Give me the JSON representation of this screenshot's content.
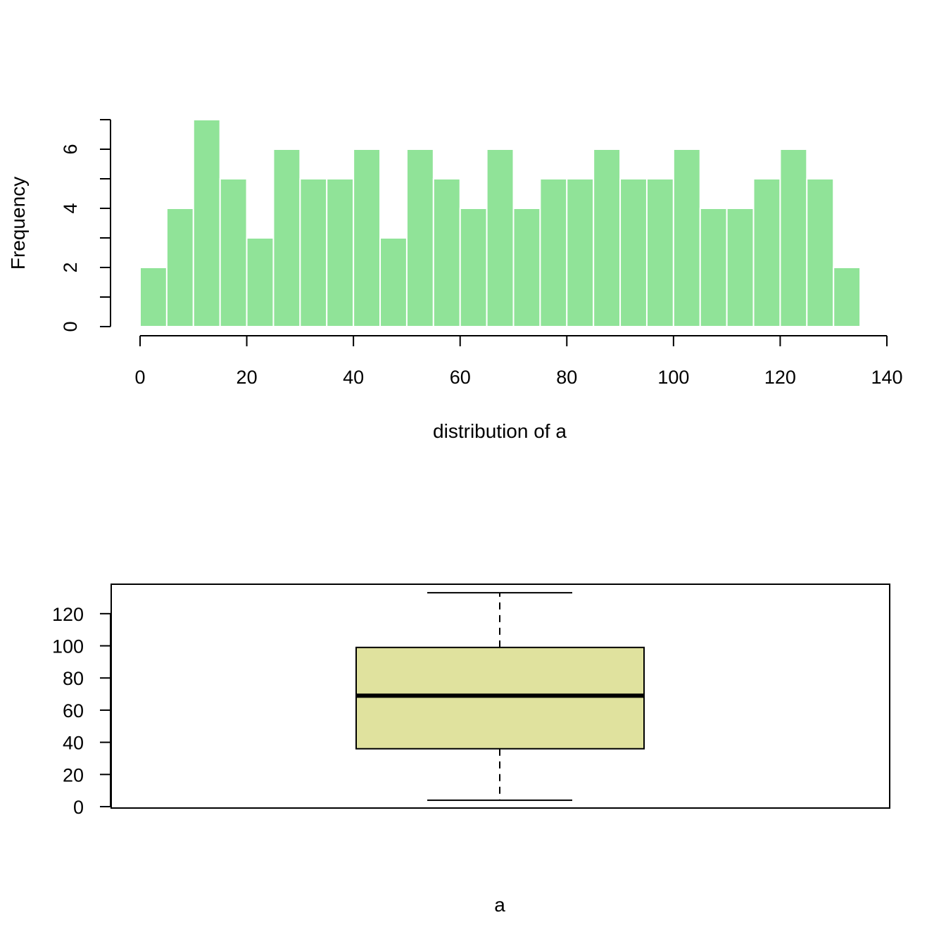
{
  "chart_data": [
    {
      "type": "bar",
      "subtype": "histogram",
      "title": "",
      "xlabel": "distribution of a",
      "ylabel": "Frequency",
      "bin_width": 5,
      "bins": [
        [
          0,
          5
        ],
        [
          5,
          10
        ],
        [
          10,
          15
        ],
        [
          15,
          20
        ],
        [
          20,
          25
        ],
        [
          25,
          30
        ],
        [
          30,
          35
        ],
        [
          35,
          40
        ],
        [
          40,
          45
        ],
        [
          45,
          50
        ],
        [
          50,
          55
        ],
        [
          55,
          60
        ],
        [
          60,
          65
        ],
        [
          65,
          70
        ],
        [
          70,
          75
        ],
        [
          75,
          80
        ],
        [
          80,
          85
        ],
        [
          85,
          90
        ],
        [
          90,
          95
        ],
        [
          95,
          100
        ],
        [
          100,
          105
        ],
        [
          105,
          110
        ],
        [
          110,
          115
        ],
        [
          115,
          120
        ],
        [
          120,
          125
        ],
        [
          125,
          130
        ],
        [
          130,
          135
        ]
      ],
      "values": [
        2,
        4,
        7,
        5,
        3,
        6,
        5,
        5,
        6,
        3,
        6,
        5,
        4,
        6,
        4,
        5,
        5,
        6,
        5,
        5,
        6,
        4,
        4,
        5,
        6,
        5,
        2
      ],
      "xlim": [
        0,
        140
      ],
      "ylim": [
        0,
        7
      ],
      "x_ticks": [
        "0",
        "20",
        "40",
        "60",
        "80",
        "100",
        "120",
        "140"
      ],
      "y_ticks": [
        "0",
        "2",
        "4",
        "6"
      ],
      "grid": false,
      "bar_color": "#90e398",
      "bar_border": "#ffffff"
    },
    {
      "type": "box",
      "title": "",
      "xlabel": "a",
      "ylabel": "",
      "stats": {
        "min": 4,
        "q1": 36,
        "median": 69,
        "q3": 99,
        "max": 133
      },
      "ylim": [
        0,
        137
      ],
      "y_ticks": [
        "0",
        "20",
        "40",
        "60",
        "80",
        "100",
        "120"
      ],
      "grid": false,
      "box_color": "#e0e29e"
    }
  ]
}
